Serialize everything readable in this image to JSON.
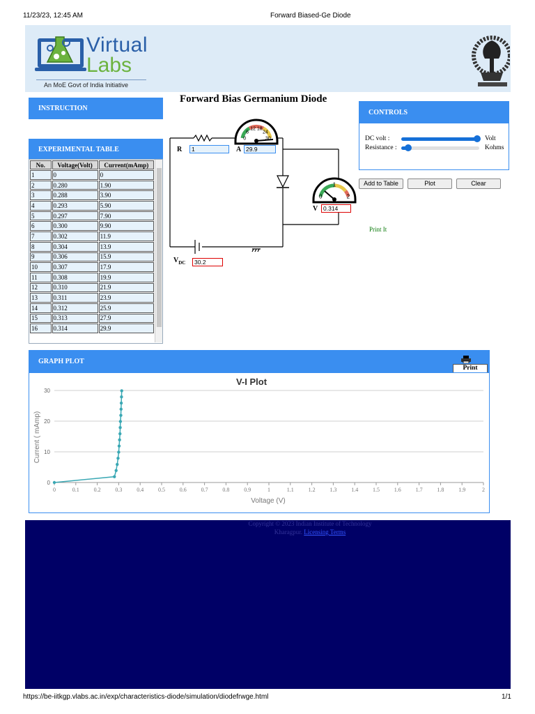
{
  "print_header": {
    "datetime": "11/23/23, 12:45 AM",
    "title": "Forward Biased-Ge Diode"
  },
  "print_footer": {
    "url": "https://be-iitkgp.vlabs.ac.in/exp/characteristics-diode/simulation/diodefrwge.html",
    "page": "1/1"
  },
  "brand": {
    "word1": "Virtual",
    "word2": "Labs",
    "tagline": "An MoE Govt of India Initiative"
  },
  "page_title": "Forward Bias Germanium Diode",
  "sections": {
    "instruction": "INSTRUCTION",
    "table": "EXPERIMENTAL TABLE",
    "controls": "CONTROLS",
    "graph": "GRAPH PLOT"
  },
  "controls": {
    "dc_label": "DC volt :",
    "dc_unit": "Volt",
    "dc_fraction": 0.97,
    "res_label": "Resistance :",
    "res_unit": "Kohms",
    "res_fraction": 0.09
  },
  "buttons": {
    "add": "Add to Table",
    "plot": "Plot",
    "clear": "Clear",
    "print_it": "Print It",
    "print": "Print"
  },
  "circuit": {
    "r_label": "R",
    "r_value": "1",
    "a_label": "A",
    "a_value": "29.9",
    "v_label": "V",
    "v_value": "0.314",
    "vdc_label": "V",
    "vdc_sub": "DC",
    "vdc_value": "30.2",
    "ammeter_ticks": [
      "0",
      "6",
      "12",
      "18",
      "24",
      "30"
    ],
    "voltmeter_ticks": [
      "0",
      "1",
      "2"
    ]
  },
  "table": {
    "headers": [
      "No.",
      "Voltage(Volt)",
      "Current(mAmp)"
    ],
    "rows": [
      [
        "1",
        "0",
        "0"
      ],
      [
        "2",
        "0.280",
        "1.90"
      ],
      [
        "3",
        "0.288",
        "3.90"
      ],
      [
        "4",
        "0.293",
        "5.90"
      ],
      [
        "5",
        "0.297",
        "7.90"
      ],
      [
        "6",
        "0.300",
        "9.90"
      ],
      [
        "7",
        "0.302",
        "11.9"
      ],
      [
        "8",
        "0.304",
        "13.9"
      ],
      [
        "9",
        "0.306",
        "15.9"
      ],
      [
        "10",
        "0.307",
        "17.9"
      ],
      [
        "11",
        "0.308",
        "19.9"
      ],
      [
        "12",
        "0.310",
        "21.9"
      ],
      [
        "13",
        "0.311",
        "23.9"
      ],
      [
        "14",
        "0.312",
        "25.9"
      ],
      [
        "15",
        "0.313",
        "27.9"
      ],
      [
        "16",
        "0.314",
        "29.9"
      ]
    ]
  },
  "footer": {
    "text": "Copyright © 2023 Indian Institute of Technology Kharagpur.",
    "link": "Licensing Terms"
  },
  "colors": {
    "accent": "#3a8ef0",
    "plot_line": "#3aa8b4",
    "footer_bg": "#000066"
  },
  "chart_data": {
    "type": "line",
    "title": "V-I Plot",
    "xlabel": "Voltage (V)",
    "ylabel": "Current ( mAmp)",
    "xlim": [
      0,
      2
    ],
    "ylim": [
      0,
      30
    ],
    "xticks": [
      "0",
      "0.1",
      "0.2",
      "0.3",
      "0.4",
      "0.5",
      "0.6",
      "0.7",
      "0.8",
      "0.9",
      "1",
      "1.1",
      "1.2",
      "1.3",
      "1.4",
      "1.5",
      "1.6",
      "1.7",
      "1.8",
      "1.9",
      "2"
    ],
    "yticks": [
      "0",
      "10",
      "20",
      "30"
    ],
    "grid": true,
    "series": [
      {
        "x": [
          0,
          0.28,
          0.288,
          0.293,
          0.297,
          0.3,
          0.302,
          0.304,
          0.306,
          0.307,
          0.308,
          0.31,
          0.311,
          0.312,
          0.313,
          0.314
        ],
        "y": [
          0,
          1.9,
          3.9,
          5.9,
          7.9,
          9.9,
          11.9,
          13.9,
          15.9,
          17.9,
          19.9,
          21.9,
          23.9,
          25.9,
          27.9,
          29.9
        ]
      }
    ]
  }
}
